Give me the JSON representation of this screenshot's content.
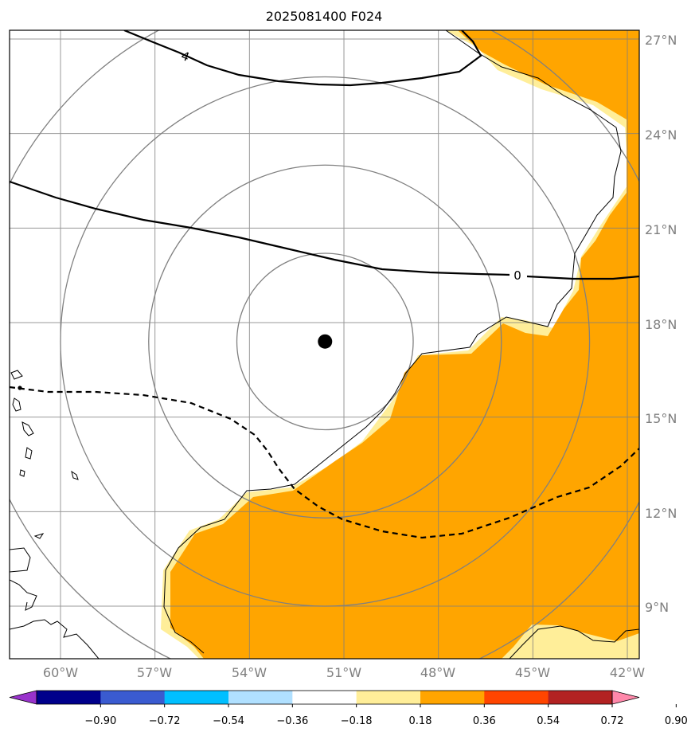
{
  "title": "2025081400 F024",
  "map": {
    "lat_ticks": [
      "27°N",
      "24°N",
      "21°N",
      "18°N",
      "15°N",
      "12°N",
      "9°N"
    ],
    "lon_ticks": [
      "60°W",
      "57°W",
      "54°W",
      "51°W",
      "48°W",
      "45°W",
      "42°W"
    ],
    "storm_center_lon": -51.6,
    "storm_center_lat": 17.4,
    "range_rings_deg": [
      2.8,
      5.6,
      8.4,
      11.2
    ],
    "contour_labels": [
      "4",
      "0"
    ],
    "colors": {
      "fill_low": "#ffee99",
      "fill_main": "#ffa500",
      "grid": "#7f7f7f",
      "ring": "#808080",
      "coast": "#000000",
      "contour": "#000000"
    }
  },
  "colorbar": {
    "ticks": [
      "−0.90",
      "−0.72",
      "−0.54",
      "−0.36",
      "−0.18",
      "0.18",
      "0.36",
      "0.54",
      "0.72",
      "0.90"
    ],
    "colors": [
      "#9933cc",
      "#00008b",
      "#3a5bd0",
      "#00bfff",
      "#b0e0ff",
      "#ffffff",
      "#ffee99",
      "#ffa500",
      "#ff4500",
      "#b22222",
      "#ff88aa"
    ]
  }
}
